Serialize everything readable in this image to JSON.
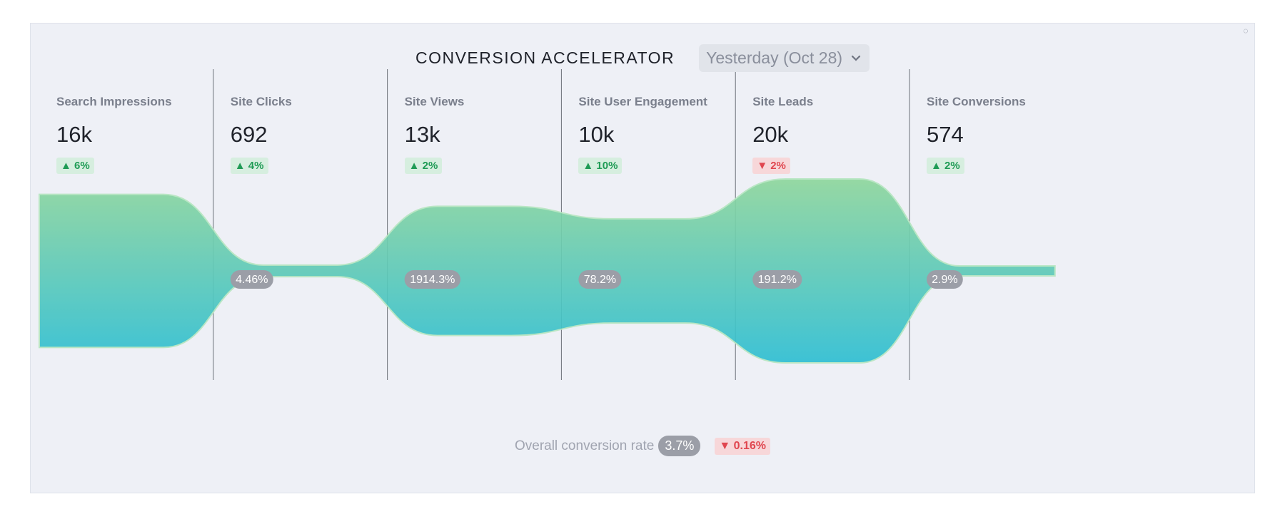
{
  "header": {
    "title": "CONVERSION ACCELERATOR",
    "date_label": "Yesterday (Oct 28)"
  },
  "colors": {
    "flow_top": "#8fd69d",
    "flow_bottom": "#2fbfd3",
    "up": "#1f9b55",
    "down": "#e0464f",
    "pill": "#9b9ea7"
  },
  "chart_data": {
    "type": "funnel-flow",
    "stages": [
      {
        "label": "Search Impressions",
        "value": "16k",
        "change": "▲ 6%",
        "trend": "up",
        "rate": ""
      },
      {
        "label": "Site Clicks",
        "value": "692",
        "change": "▲ 4%",
        "trend": "up",
        "rate": "4.46%"
      },
      {
        "label": "Site Views",
        "value": "13k",
        "change": "▲ 2%",
        "trend": "up",
        "rate": "1914.3%"
      },
      {
        "label": "Site User Engagement",
        "value": "10k",
        "change": "▲ 10%",
        "trend": "up",
        "rate": "78.2%"
      },
      {
        "label": "Site Leads",
        "value": "20k",
        "change": "▼ 2%",
        "trend": "down",
        "rate": "191.2%"
      },
      {
        "label": "Site Conversions",
        "value": "574",
        "change": "▲ 2%",
        "trend": "up",
        "rate": "2.9%"
      }
    ],
    "numeric_values": [
      16000,
      692,
      13000,
      10000,
      20000,
      574
    ]
  },
  "footer": {
    "label": "Overall conversion rate",
    "rate": "3.7%",
    "change": "▼ 0.16%"
  }
}
